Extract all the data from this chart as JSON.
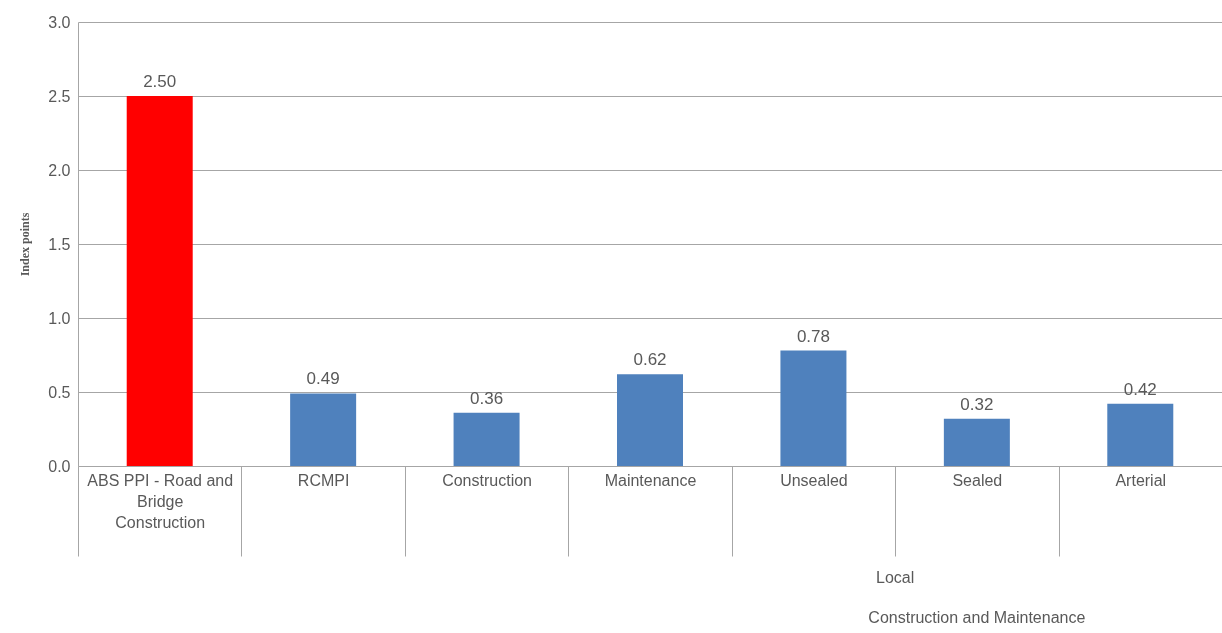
{
  "chart_data": {
    "type": "bar",
    "ylabel": "Index points",
    "categories": [
      "ABS PPI - Road and Bridge Construction",
      "RCMPI",
      "Construction",
      "Maintenance",
      "Unsealed",
      "Sealed",
      "Arterial"
    ],
    "values": [
      2.5,
      0.49,
      0.36,
      0.62,
      0.78,
      0.32,
      0.42
    ],
    "value_labels": [
      "2.50",
      "0.49",
      "0.36",
      "0.62",
      "0.78",
      "0.32",
      "0.42"
    ],
    "colors": [
      "#ff0000",
      "#4f81bd",
      "#4f81bd",
      "#4f81bd",
      "#4f81bd",
      "#4f81bd",
      "#4f81bd"
    ],
    "ylim": [
      0,
      3
    ],
    "yticks": [
      {
        "value": 0,
        "label": "0.0"
      },
      {
        "value": 0.5,
        "label": "0.5"
      },
      {
        "value": 1,
        "label": "1.0"
      },
      {
        "value": 1.5,
        "label": "1.5"
      },
      {
        "value": 2,
        "label": "2.0"
      },
      {
        "value": 2.5,
        "label": "2.5"
      },
      {
        "value": 3,
        "label": "3.0"
      }
    ],
    "grid": true,
    "annotations": [
      "Local",
      "Construction and Maintenance"
    ]
  }
}
